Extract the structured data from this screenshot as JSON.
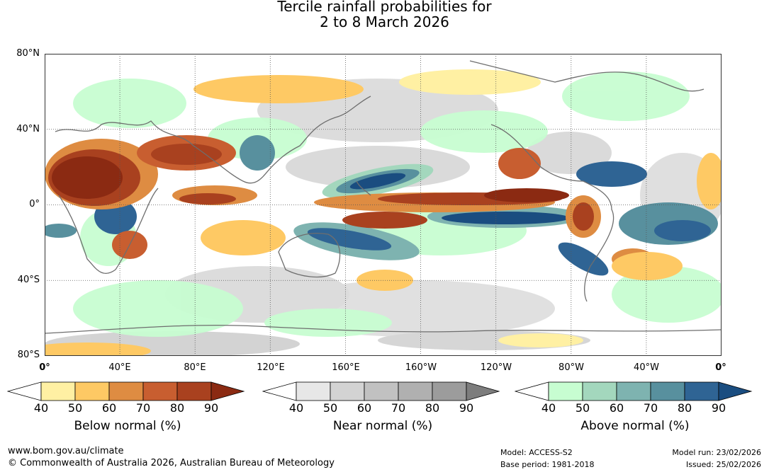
{
  "title": {
    "line1": "Tercile rainfall probabilities for",
    "line2": "2 to 8 March 2026"
  },
  "map": {
    "lat_labels": [
      "80°N",
      "40°N",
      "0°",
      "40°S",
      "80°S"
    ],
    "lon_labels": [
      "0°",
      "40°E",
      "80°E",
      "120°E",
      "160°E",
      "160°W",
      "120°W",
      "80°W",
      "40°W",
      "0°"
    ]
  },
  "legends": [
    {
      "name": "below",
      "title": "Below normal (%)",
      "ticks": [
        "40",
        "50",
        "60",
        "70",
        "80",
        "90"
      ],
      "colors": [
        "#ffffff",
        "#fff0a3",
        "#fec964",
        "#de8c42",
        "#c85e30",
        "#a9411f",
        "#8b2a12"
      ]
    },
    {
      "name": "near",
      "title": "Near normal (%)",
      "ticks": [
        "40",
        "50",
        "60",
        "70",
        "80",
        "90"
      ],
      "colors": [
        "#ffffff",
        "#e7e7e7",
        "#d3d3d3",
        "#c1c1c1",
        "#b0b0b0",
        "#9c9c9c",
        "#7d7d7d"
      ]
    },
    {
      "name": "above",
      "title": "Above normal (%)",
      "ticks": [
        "40",
        "50",
        "60",
        "70",
        "80",
        "90"
      ],
      "colors": [
        "#ffffff",
        "#c7fdd1",
        "#a3d7bd",
        "#7eb3b0",
        "#58909e",
        "#2f6494",
        "#1a4d80"
      ]
    }
  ],
  "footer": {
    "url": "www.bom.gov.au/climate",
    "copyright": "© Commonwealth of Australia 2026, Australian Bureau of Meteorology",
    "model": "Model: ACCESS-S2",
    "base_period": "Base period: 1981-2018",
    "model_run": "Model run: 23/02/2026",
    "issued": "Issued: 25/02/2026"
  }
}
